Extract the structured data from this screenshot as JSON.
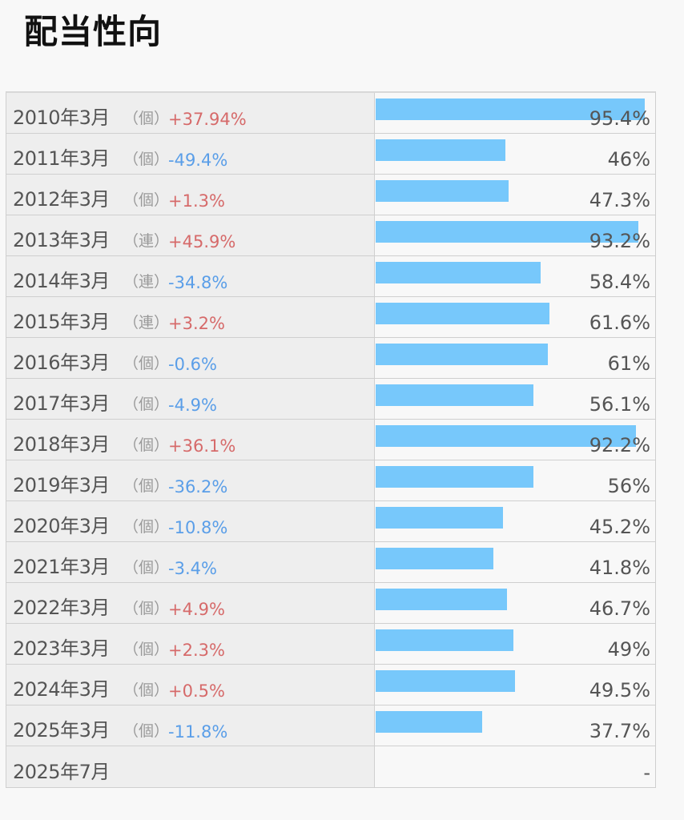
{
  "title": "配当性向",
  "bar_color": "#77c8fb",
  "up_color": "#d66a6a",
  "down_color": "#5a9ee8",
  "chart_data": {
    "type": "bar",
    "title": "配当性向",
    "orientation": "horizontal",
    "unit": "%",
    "xlim": [
      0,
      100
    ],
    "rows": [
      {
        "period": "2010年3月",
        "basis": "（個）",
        "change": "+37.94%",
        "direction": "up",
        "value": 95.4,
        "label": "95.4%"
      },
      {
        "period": "2011年3月",
        "basis": "（個）",
        "change": "-49.4%",
        "direction": "down",
        "value": 46,
        "label": "46%"
      },
      {
        "period": "2012年3月",
        "basis": "（個）",
        "change": "+1.3%",
        "direction": "up",
        "value": 47.3,
        "label": "47.3%"
      },
      {
        "period": "2013年3月",
        "basis": "（連）",
        "change": "+45.9%",
        "direction": "up",
        "value": 93.2,
        "label": "93.2%"
      },
      {
        "period": "2014年3月",
        "basis": "（連）",
        "change": "-34.8%",
        "direction": "down",
        "value": 58.4,
        "label": "58.4%"
      },
      {
        "period": "2015年3月",
        "basis": "（連）",
        "change": "+3.2%",
        "direction": "up",
        "value": 61.6,
        "label": "61.6%"
      },
      {
        "period": "2016年3月",
        "basis": "（個）",
        "change": "-0.6%",
        "direction": "down",
        "value": 61,
        "label": "61%"
      },
      {
        "period": "2017年3月",
        "basis": "（個）",
        "change": "-4.9%",
        "direction": "down",
        "value": 56.1,
        "label": "56.1%"
      },
      {
        "period": "2018年3月",
        "basis": "（個）",
        "change": "+36.1%",
        "direction": "up",
        "value": 92.2,
        "label": "92.2%"
      },
      {
        "period": "2019年3月",
        "basis": "（個）",
        "change": "-36.2%",
        "direction": "down",
        "value": 56,
        "label": "56%"
      },
      {
        "period": "2020年3月",
        "basis": "（個）",
        "change": "-10.8%",
        "direction": "down",
        "value": 45.2,
        "label": "45.2%"
      },
      {
        "period": "2021年3月",
        "basis": "（個）",
        "change": "-3.4%",
        "direction": "down",
        "value": 41.8,
        "label": "41.8%"
      },
      {
        "period": "2022年3月",
        "basis": "（個）",
        "change": "+4.9%",
        "direction": "up",
        "value": 46.7,
        "label": "46.7%"
      },
      {
        "period": "2023年3月",
        "basis": "（個）",
        "change": "+2.3%",
        "direction": "up",
        "value": 49,
        "label": "49%"
      },
      {
        "period": "2024年3月",
        "basis": "（個）",
        "change": "+0.5%",
        "direction": "up",
        "value": 49.5,
        "label": "49.5%"
      },
      {
        "period": "2025年3月",
        "basis": "（個）",
        "change": "-11.8%",
        "direction": "down",
        "value": 37.7,
        "label": "37.7%"
      },
      {
        "period": "2025年7月",
        "basis": "",
        "change": "",
        "direction": "",
        "value": null,
        "label": "-"
      }
    ]
  }
}
